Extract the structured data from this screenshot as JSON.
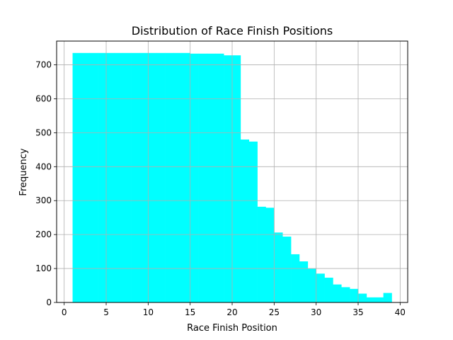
{
  "chart_data": {
    "type": "bar",
    "title": "Distribution of Race Finish Positions",
    "xlabel": "Race Finish Position",
    "ylabel": "Frequency",
    "xlim": [
      -0.9,
      40.9
    ],
    "ylim": [
      0,
      770
    ],
    "xticks": [
      0,
      5,
      10,
      15,
      20,
      25,
      30,
      35,
      40
    ],
    "yticks": [
      0,
      100,
      200,
      300,
      400,
      500,
      600,
      700
    ],
    "grid": true,
    "color": "#00ffff",
    "bins": [
      {
        "start": 1,
        "end": 2,
        "value": 735
      },
      {
        "start": 2,
        "end": 3,
        "value": 735
      },
      {
        "start": 3,
        "end": 4,
        "value": 735
      },
      {
        "start": 4,
        "end": 5,
        "value": 735
      },
      {
        "start": 5,
        "end": 6,
        "value": 735
      },
      {
        "start": 6,
        "end": 7,
        "value": 735
      },
      {
        "start": 7,
        "end": 8,
        "value": 735
      },
      {
        "start": 8,
        "end": 9,
        "value": 735
      },
      {
        "start": 9,
        "end": 10,
        "value": 735
      },
      {
        "start": 10,
        "end": 11,
        "value": 735
      },
      {
        "start": 11,
        "end": 12,
        "value": 735
      },
      {
        "start": 12,
        "end": 13,
        "value": 735
      },
      {
        "start": 13,
        "end": 14,
        "value": 735
      },
      {
        "start": 14,
        "end": 15,
        "value": 735
      },
      {
        "start": 15,
        "end": 16,
        "value": 733
      },
      {
        "start": 16,
        "end": 17,
        "value": 733
      },
      {
        "start": 17,
        "end": 18,
        "value": 733
      },
      {
        "start": 18,
        "end": 19,
        "value": 733
      },
      {
        "start": 19,
        "end": 20,
        "value": 728
      },
      {
        "start": 20,
        "end": 21,
        "value": 728
      },
      {
        "start": 21,
        "end": 22,
        "value": 480
      },
      {
        "start": 22,
        "end": 23,
        "value": 474
      },
      {
        "start": 23,
        "end": 24,
        "value": 282
      },
      {
        "start": 24,
        "end": 25,
        "value": 279
      },
      {
        "start": 25,
        "end": 26,
        "value": 206
      },
      {
        "start": 26,
        "end": 27,
        "value": 194
      },
      {
        "start": 27,
        "end": 28,
        "value": 142
      },
      {
        "start": 28,
        "end": 29,
        "value": 121
      },
      {
        "start": 29,
        "end": 30,
        "value": 100
      },
      {
        "start": 30,
        "end": 31,
        "value": 85
      },
      {
        "start": 31,
        "end": 32,
        "value": 73
      },
      {
        "start": 32,
        "end": 33,
        "value": 53
      },
      {
        "start": 33,
        "end": 34,
        "value": 45
      },
      {
        "start": 34,
        "end": 35,
        "value": 40
      },
      {
        "start": 35,
        "end": 36,
        "value": 26
      },
      {
        "start": 36,
        "end": 37,
        "value": 15
      },
      {
        "start": 37,
        "end": 38,
        "value": 15
      },
      {
        "start": 38,
        "end": 39,
        "value": 28
      }
    ]
  }
}
